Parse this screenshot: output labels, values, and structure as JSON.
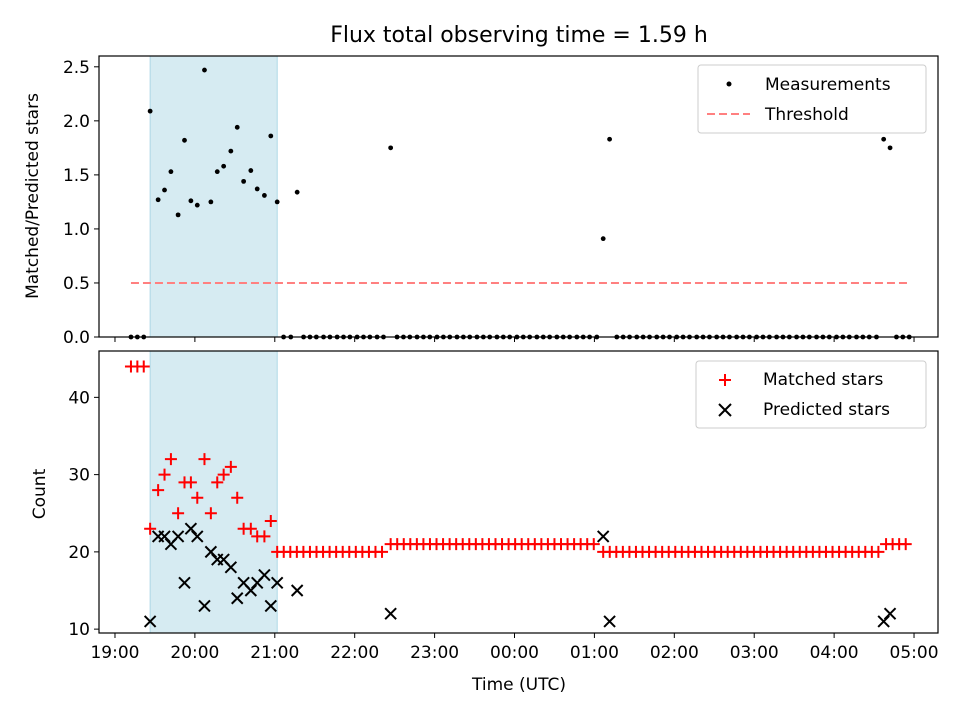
{
  "title": "Flux total observing time = 1.59 h",
  "chart_data": [
    {
      "type": "scatter",
      "ylabel": "Matched/Predicted stars",
      "xlim": [
        18.8,
        29.3
      ],
      "ylim": [
        0,
        2.6
      ],
      "yticks": [
        0.0,
        0.5,
        1.0,
        1.5,
        2.0,
        2.5
      ],
      "ytick_labels": [
        "0.0",
        "0.5",
        "1.0",
        "1.5",
        "2.0",
        "2.5"
      ],
      "legend": [
        "Measurements",
        "Threshold"
      ],
      "legend_position": "top-right",
      "shaded_span": [
        19.44,
        21.03
      ],
      "threshold": {
        "value": 0.5,
        "x_range": [
          19.2,
          28.95
        ],
        "color": "#ff8080"
      },
      "series": [
        {
          "name": "Measurements",
          "color": "#000000",
          "points": [
            [
              19.44,
              2.09
            ],
            [
              19.54,
              1.27
            ],
            [
              19.62,
              1.36
            ],
            [
              19.7,
              1.53
            ],
            [
              19.79,
              1.13
            ],
            [
              19.87,
              1.82
            ],
            [
              19.95,
              1.26
            ],
            [
              20.03,
              1.22
            ],
            [
              20.12,
              2.47
            ],
            [
              20.2,
              1.25
            ],
            [
              20.28,
              1.53
            ],
            [
              20.36,
              1.58
            ],
            [
              20.45,
              1.72
            ],
            [
              20.53,
              1.94
            ],
            [
              20.61,
              1.44
            ],
            [
              20.7,
              1.54
            ],
            [
              20.78,
              1.37
            ],
            [
              20.87,
              1.31
            ],
            [
              20.95,
              1.86
            ],
            [
              21.03,
              1.25
            ],
            [
              21.28,
              1.34
            ],
            [
              22.45,
              1.75
            ],
            [
              25.11,
              0.91
            ],
            [
              25.19,
              1.83
            ],
            [
              28.62,
              1.83
            ],
            [
              28.7,
              1.75
            ]
          ]
        }
      ],
      "zero_points": [
        19.2,
        19.28,
        19.36,
        21.11,
        21.2,
        21.36,
        21.44,
        21.52,
        21.61,
        21.69,
        21.78,
        21.86,
        21.94,
        22.03,
        22.11,
        22.19,
        22.28,
        22.36,
        22.53,
        22.61,
        22.69,
        22.78,
        22.86,
        22.94,
        23.03,
        23.11,
        23.19,
        23.28,
        23.36,
        23.44,
        23.53,
        23.61,
        23.69,
        23.78,
        23.86,
        23.94,
        24.03,
        24.11,
        24.19,
        24.28,
        24.36,
        24.44,
        24.53,
        24.61,
        24.69,
        24.78,
        24.86,
        24.94,
        25.03,
        25.28,
        25.36,
        25.44,
        25.53,
        25.61,
        25.69,
        25.78,
        25.86,
        25.94,
        26.03,
        26.11,
        26.19,
        26.28,
        26.36,
        26.44,
        26.53,
        26.61,
        26.69,
        26.78,
        26.86,
        26.94,
        27.03,
        27.11,
        27.19,
        27.28,
        27.36,
        27.44,
        27.53,
        27.61,
        27.69,
        27.78,
        27.86,
        27.94,
        28.03,
        28.11,
        28.19,
        28.28,
        28.36,
        28.44,
        28.53,
        28.78,
        28.86,
        28.94
      ]
    },
    {
      "type": "scatter",
      "xlabel": "Time (UTC)",
      "ylabel": "Count",
      "xlim": [
        18.8,
        29.3
      ],
      "ylim": [
        9.5,
        46
      ],
      "xticks": [
        19,
        20,
        21,
        22,
        23,
        24,
        25,
        26,
        27,
        28,
        29
      ],
      "xtick_labels": [
        "19:00",
        "20:00",
        "21:00",
        "22:00",
        "23:00",
        "00:00",
        "01:00",
        "02:00",
        "03:00",
        "04:00",
        "05:00"
      ],
      "yticks": [
        10,
        20,
        30,
        40
      ],
      "ytick_labels": [
        "10",
        "20",
        "30",
        "40"
      ],
      "legend": [
        "Matched stars",
        "Predicted stars"
      ],
      "legend_position": "top-right",
      "shaded_span": [
        19.44,
        21.03
      ],
      "series": [
        {
          "name": "Matched stars",
          "marker": "+",
          "color": "#ff0000",
          "points": [
            [
              19.2,
              44
            ],
            [
              19.28,
              44
            ],
            [
              19.36,
              44
            ],
            [
              19.44,
              23
            ],
            [
              19.54,
              28
            ],
            [
              19.62,
              30
            ],
            [
              19.7,
              32
            ],
            [
              19.79,
              25
            ],
            [
              19.87,
              29
            ],
            [
              19.95,
              29
            ],
            [
              20.03,
              27
            ],
            [
              20.12,
              32
            ],
            [
              20.2,
              25
            ],
            [
              20.28,
              29
            ],
            [
              20.36,
              30
            ],
            [
              20.45,
              31
            ],
            [
              20.53,
              27
            ],
            [
              20.61,
              23
            ],
            [
              20.7,
              23
            ],
            [
              20.78,
              22
            ],
            [
              20.87,
              22
            ],
            [
              20.95,
              24
            ]
          ],
          "constant_runs": [
            {
              "value": 20,
              "start": 21.03,
              "end": 22.4,
              "step": 0.082
            },
            {
              "value": 21,
              "start": 22.45,
              "end": 25.05,
              "step": 0.082
            },
            {
              "value": 20,
              "start": 25.11,
              "end": 28.6,
              "step": 0.082
            },
            {
              "value": 21,
              "start": 28.65,
              "end": 28.95,
              "step": 0.082
            }
          ]
        },
        {
          "name": "Predicted stars",
          "marker": "x",
          "color": "#000000",
          "points": [
            [
              19.44,
              11
            ],
            [
              19.54,
              22
            ],
            [
              19.62,
              22
            ],
            [
              19.7,
              21
            ],
            [
              19.79,
              22
            ],
            [
              19.87,
              16
            ],
            [
              19.95,
              23
            ],
            [
              20.03,
              22
            ],
            [
              20.12,
              13
            ],
            [
              20.2,
              20
            ],
            [
              20.28,
              19
            ],
            [
              20.36,
              19
            ],
            [
              20.45,
              18
            ],
            [
              20.53,
              14
            ],
            [
              20.61,
              16
            ],
            [
              20.7,
              15
            ],
            [
              20.78,
              16
            ],
            [
              20.87,
              17
            ],
            [
              20.95,
              13
            ],
            [
              21.03,
              16
            ],
            [
              21.28,
              15
            ],
            [
              22.45,
              12
            ],
            [
              25.11,
              22
            ],
            [
              25.19,
              11
            ],
            [
              28.62,
              11
            ],
            [
              28.7,
              12
            ]
          ]
        }
      ]
    }
  ]
}
